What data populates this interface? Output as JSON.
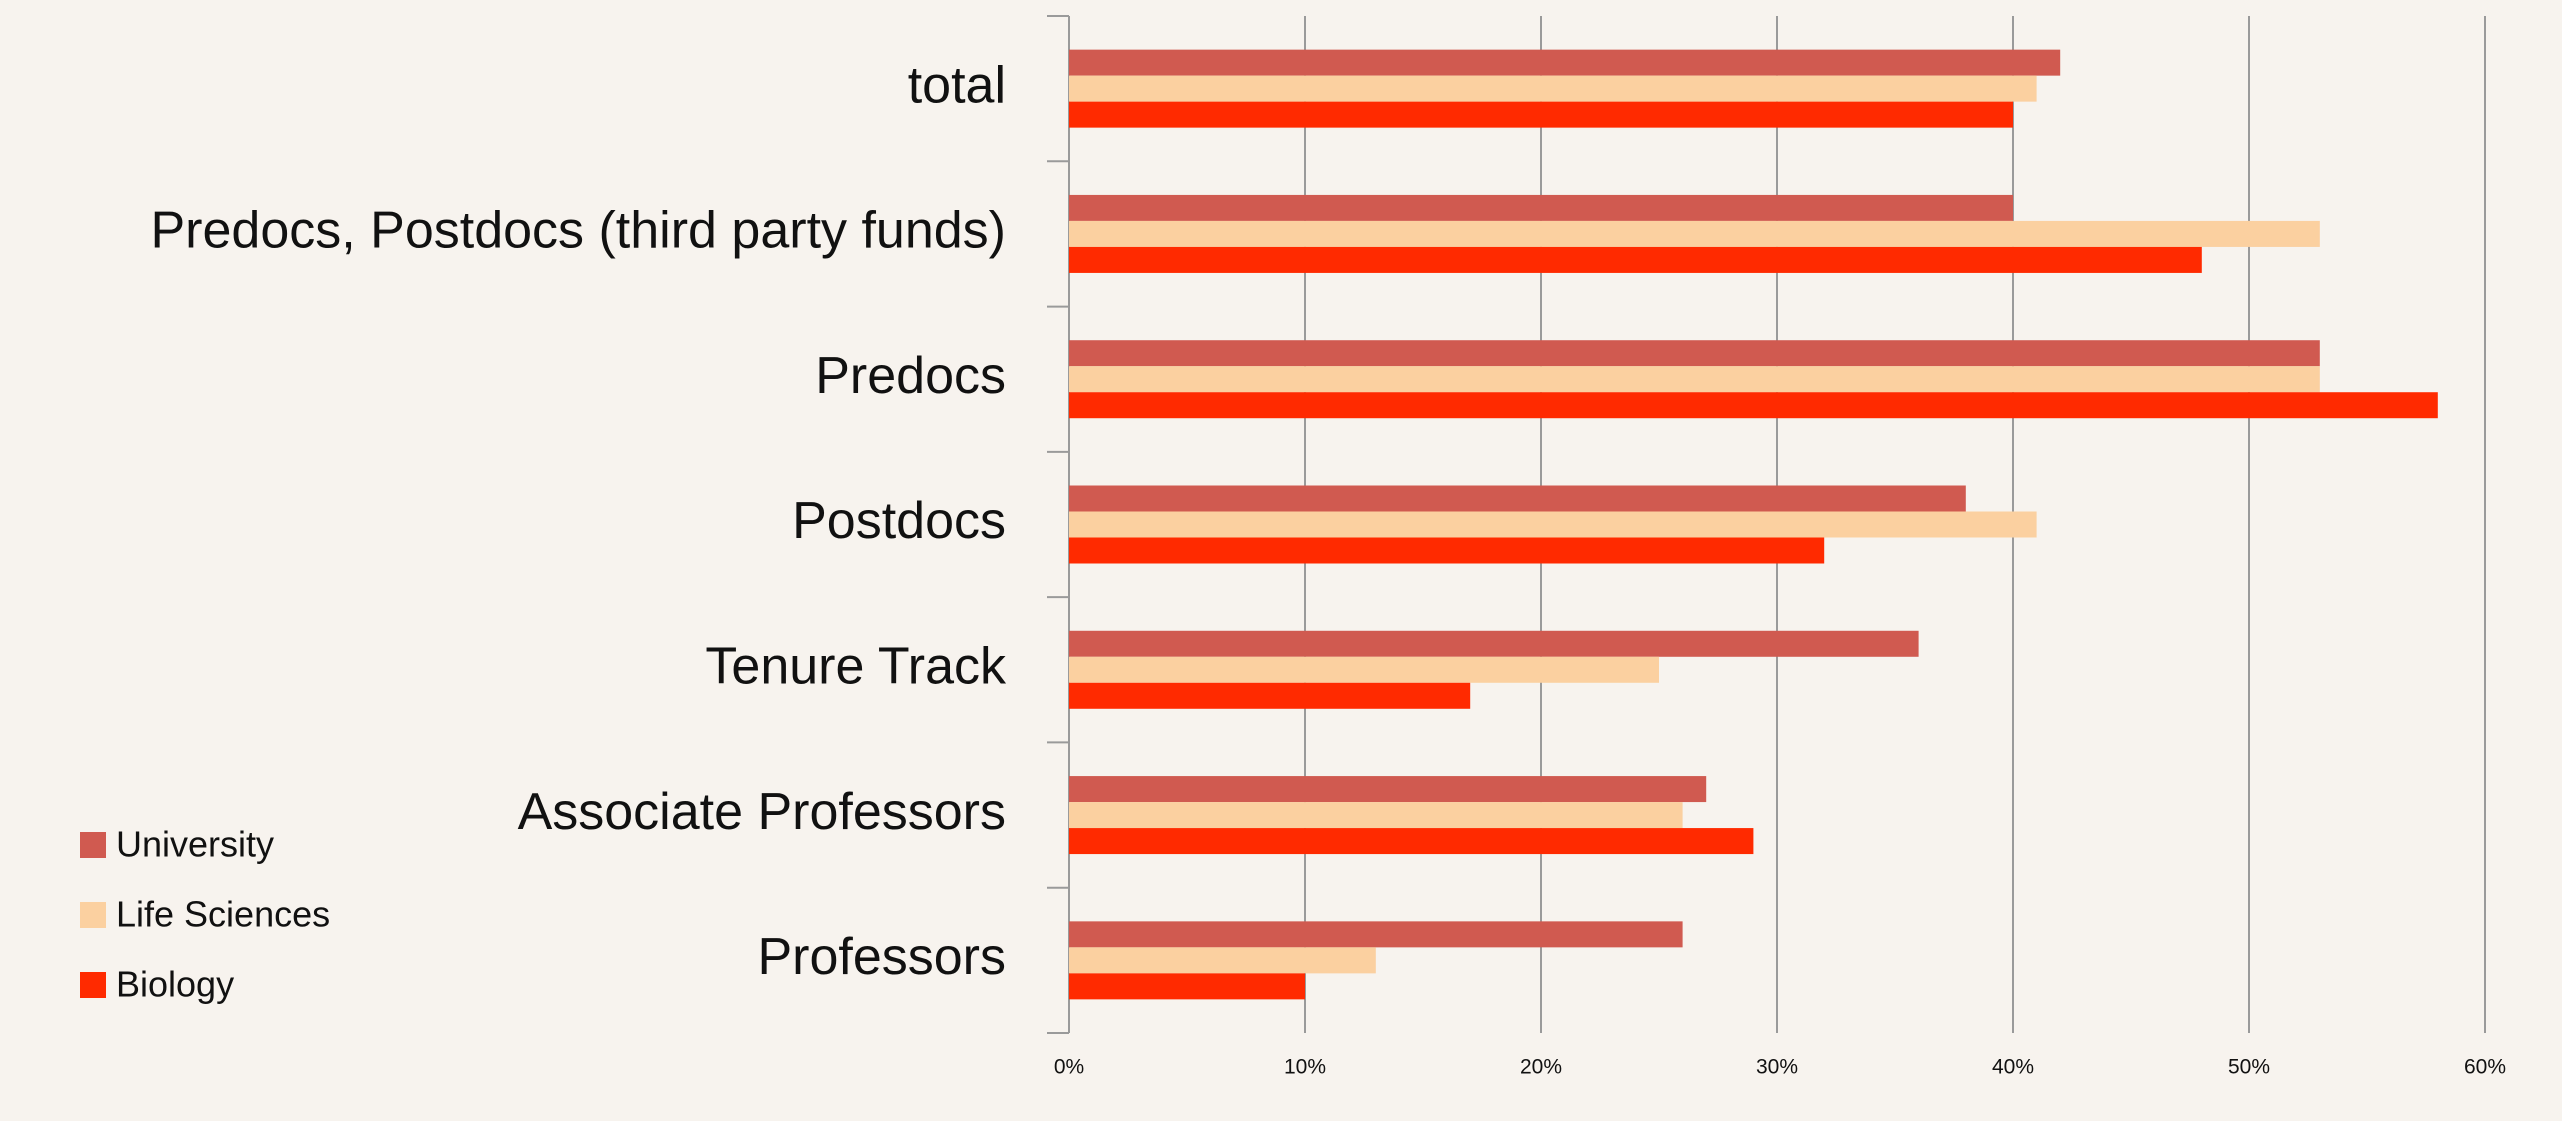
{
  "chart_data": {
    "type": "hbar",
    "categories": [
      "total",
      "Predocs, Postdocs (third party funds)",
      "Predocs",
      "Postdocs",
      "Tenure Track",
      "Associate Professors",
      "Professors"
    ],
    "series": [
      {
        "name": "University",
        "color": "#d05a50",
        "values": [
          42,
          40,
          53,
          38,
          36,
          27,
          26
        ]
      },
      {
        "name": "Life Sciences",
        "color": "#fbd0a0",
        "values": [
          41,
          53,
          53,
          41,
          25,
          26,
          13
        ]
      },
      {
        "name": "Biology",
        "color": "#ff2a00",
        "values": [
          40,
          48,
          58,
          32,
          17,
          29,
          10
        ]
      }
    ],
    "xlim": [
      0,
      60
    ],
    "xticks": [
      {
        "value": 0,
        "label": "0%"
      },
      {
        "value": 10,
        "label": "10%"
      },
      {
        "value": 20,
        "label": "20%"
      },
      {
        "value": 30,
        "label": "30%"
      },
      {
        "value": 40,
        "label": "40%"
      },
      {
        "value": 50,
        "label": "50%"
      },
      {
        "value": 60,
        "label": "60%"
      }
    ],
    "grid": true,
    "legend": "lower-left"
  }
}
